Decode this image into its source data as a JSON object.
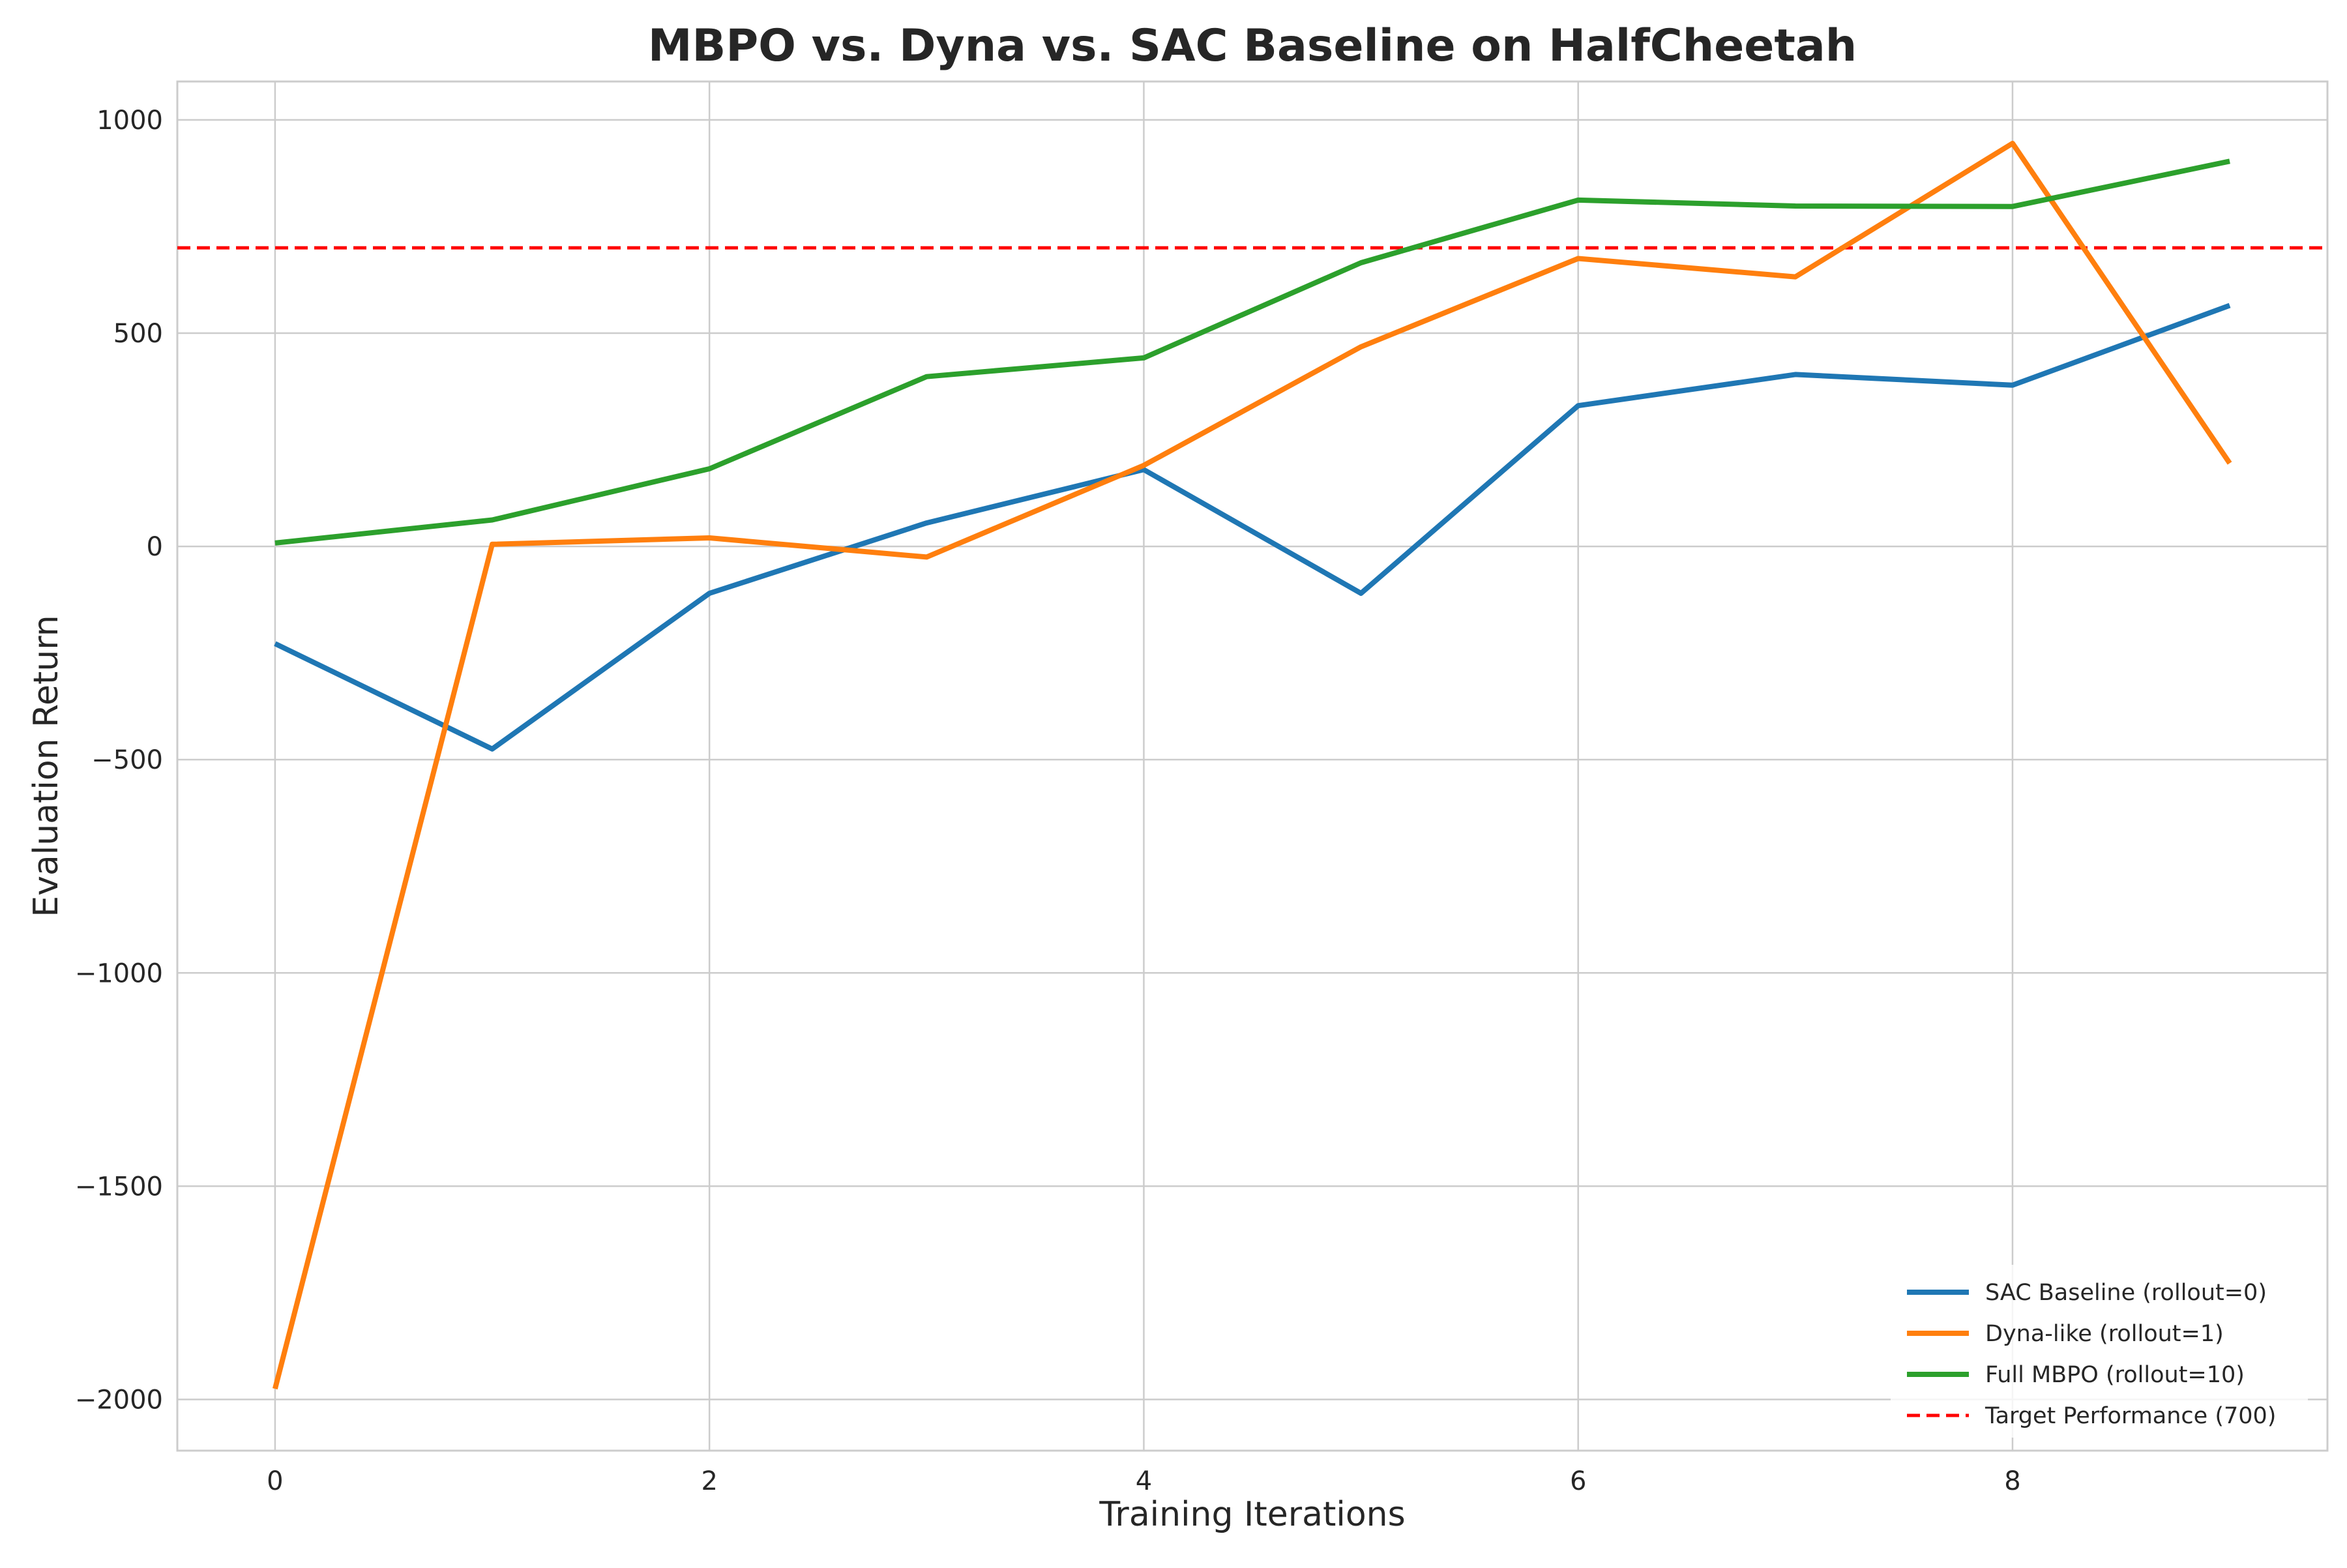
{
  "chart_data": {
    "type": "line",
    "title": "MBPO vs. Dyna vs. SAC Baseline on HalfCheetah",
    "xlabel": "Training Iterations",
    "ylabel": "Evaluation Return",
    "x": [
      0,
      1,
      2,
      3,
      4,
      5,
      6,
      7,
      8,
      9
    ],
    "xlim": [
      -0.45,
      9.45
    ],
    "ylim": [
      -2120,
      1090
    ],
    "x_ticks": [
      0,
      2,
      4,
      6,
      8
    ],
    "y_ticks": [
      1000,
      500,
      0,
      -500,
      -1000,
      -1500,
      -2000
    ],
    "x_tick_labels": [
      "0",
      "2",
      "4",
      "6",
      "8"
    ],
    "y_tick_labels": [
      "1000",
      "500",
      "0",
      "−500",
      "−1000",
      "−1500",
      "−2000"
    ],
    "grid": true,
    "legend_position": "lower right",
    "series": [
      {
        "name": "SAC Baseline (rollout=0)",
        "color": "#1f77b4",
        "style": "solid",
        "values": [
          -228,
          -475,
          -110,
          55,
          180,
          -110,
          330,
          403,
          378,
          565
        ]
      },
      {
        "name": "Dyna-like (rollout=1)",
        "color": "#ff7f0e",
        "style": "solid",
        "values": [
          -1975,
          5,
          20,
          -25,
          190,
          468,
          675,
          632,
          945,
          195
        ]
      },
      {
        "name": "Full MBPO (rollout=10)",
        "color": "#2ca02c",
        "style": "solid",
        "values": [
          8,
          62,
          182,
          398,
          442,
          665,
          812,
          798,
          797,
          903
        ]
      }
    ],
    "reference_lines": [
      {
        "name": "Target Performance (700)",
        "y": 700,
        "color": "#ff0000",
        "style": "dashed"
      }
    ]
  }
}
